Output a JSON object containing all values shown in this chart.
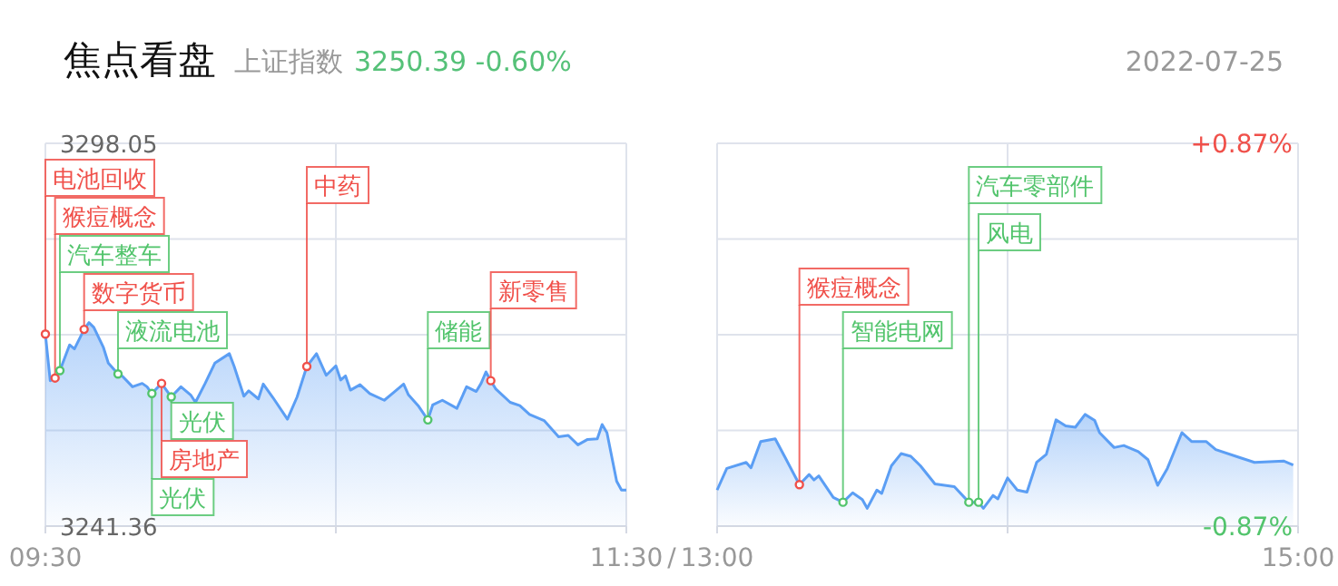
{
  "chart_data": [
    {
      "type": "line",
      "title": "焦点看盘",
      "subtitle": "上证指数",
      "annotations": [
        "3250.39 -0.60%",
        "2022-07-25",
        "/",
        {
          "text": "汽车整车",
          "x": "2022-07-25T09:33",
          "y": 3264.4
        },
        {
          "text": "猴痘概念",
          "x": "2022-07-25T09:32",
          "y": 3263.3
        },
        {
          "text": "电池回收",
          "x": "2022-07-25T09:30",
          "y": 3269.8
        },
        {
          "text": "光伏",
          "x": "2022-07-25T09:56",
          "y": 3260.5
        },
        {
          "text": "房地产",
          "x": "2022-07-25T09:54",
          "y": 3262.5
        },
        {
          "text": "数字货币",
          "x": "2022-07-25T09:38",
          "y": 3270.5
        },
        {
          "text": "液流电池",
          "x": "2022-07-25T09:45",
          "y": 3263.9
        },
        {
          "text": "光伏",
          "x": "2022-07-25T09:52",
          "y": 3261.0
        },
        {
          "text": "中药",
          "x": "2022-07-25T10:24",
          "y": 3265.0
        },
        {
          "text": "储能",
          "x": "2022-07-25T10:49",
          "y": 3257.1
        },
        {
          "text": "新零售",
          "x": "2022-07-25T11:02",
          "y": 3262.9
        }
      ],
      "xlim": [
        "2022-07-25T09:30",
        "2022-07-25T11:30"
      ],
      "xticks": [
        {
          "value": "2022-07-25T09:30",
          "label": "09:30"
        },
        {
          "value": "2022-07-25T10:30",
          "label": null
        },
        {
          "value": "2022-07-25T11:30",
          "label": "11:30"
        }
      ],
      "ylim": [
        3241.36,
        3298.05
      ],
      "yticks": [
        3241.36,
        {
          "value": 3255.53,
          "label": null
        },
        {
          "value": 3269.71,
          "label": null
        },
        {
          "value": 3283.88,
          "label": null
        },
        3298.05
      ],
      "grid": true,
      "series": [
        {
          "type": "area",
          "color": "#5b9ef4",
          "x": [
            "2022-07-25T09:30",
            "2022-07-25T09:31",
            "2022-07-25T09:32",
            "2022-07-25T09:33",
            "2022-07-25T09:35",
            "2022-07-25T09:36",
            "2022-07-25T09:38",
            "2022-07-25T09:39",
            "2022-07-25T09:40",
            "2022-07-25T09:42",
            "2022-07-25T09:43",
            "2022-07-25T09:45",
            "2022-07-25T09:46",
            "2022-07-25T09:48",
            "2022-07-25T09:50",
            "2022-07-25T09:51",
            "2022-07-25T09:52",
            "2022-07-25T09:54",
            "2022-07-25T09:56",
            "2022-07-25T09:58",
            "2022-07-25T10:00",
            "2022-07-25T10:01",
            "2022-07-25T10:03",
            "2022-07-25T10:05",
            "2022-07-25T10:08",
            "2022-07-25T10:09",
            "2022-07-25T10:11",
            "2022-07-25T10:12",
            "2022-07-25T10:14",
            "2022-07-25T10:15",
            "2022-07-25T10:17",
            "2022-07-25T10:20",
            "2022-07-25T10:22",
            "2022-07-25T10:24",
            "2022-07-25T10:26",
            "2022-07-25T10:28",
            "2022-07-25T10:30",
            "2022-07-25T10:31",
            "2022-07-25T10:32",
            "2022-07-25T10:33",
            "2022-07-25T10:35",
            "2022-07-25T10:37",
            "2022-07-25T10:40",
            "2022-07-25T10:42",
            "2022-07-25T10:44",
            "2022-07-25T10:45",
            "2022-07-25T10:47",
            "2022-07-25T10:49",
            "2022-07-25T10:50",
            "2022-07-25T10:52",
            "2022-07-25T10:55",
            "2022-07-25T10:57",
            "2022-07-25T10:59",
            "2022-07-25T11:00",
            "2022-07-25T11:01",
            "2022-07-25T11:02",
            "2022-07-25T11:03",
            "2022-07-25T11:06",
            "2022-07-25T11:08",
            "2022-07-25T11:10",
            "2022-07-25T11:13",
            "2022-07-25T11:16",
            "2022-07-25T11:18",
            "2022-07-25T11:20",
            "2022-07-25T11:22",
            "2022-07-25T11:24",
            "2022-07-25T11:25",
            "2022-07-25T11:26",
            "2022-07-25T11:28",
            "2022-07-25T11:29",
            "2022-07-25T11:30"
          ],
          "values": [
            3269.8,
            3262.9,
            3263.3,
            3264.4,
            3268.2,
            3267.6,
            3270.5,
            3271.5,
            3270.8,
            3267.8,
            3265.5,
            3263.9,
            3263.5,
            3262.0,
            3262.5,
            3262.0,
            3261.0,
            3262.5,
            3260.5,
            3262.0,
            3260.8,
            3259.7,
            3262.5,
            3265.5,
            3266.9,
            3265.0,
            3260.6,
            3261.4,
            3260.2,
            3262.4,
            3260.4,
            3257.2,
            3260.5,
            3265.0,
            3266.9,
            3263.7,
            3265.1,
            3263.0,
            3263.6,
            3261.5,
            3262.3,
            3261.0,
            3260.0,
            3261.2,
            3262.4,
            3260.8,
            3259.2,
            3257.1,
            3259.3,
            3260.0,
            3258.8,
            3262.0,
            3261.3,
            3262.5,
            3264.2,
            3262.9,
            3261.7,
            3259.7,
            3259.2,
            3257.9,
            3257.0,
            3254.6,
            3254.8,
            3253.4,
            3254.2,
            3254.3,
            3256.4,
            3255.2,
            3248.0,
            3246.7,
            3246.7
          ]
        },
        {
          "type": "scatter",
          "color": "#f0504a",
          "x": [
            "2022-07-25T09:30",
            "2022-07-25T09:32",
            "2022-07-25T09:38",
            "2022-07-25T09:54",
            "2022-07-25T10:24",
            "2022-07-25T11:02"
          ],
          "values": [
            3269.8,
            3263.3,
            3270.5,
            3262.5,
            3265.0,
            3262.9
          ]
        },
        {
          "type": "scatter",
          "color": "#52c46c",
          "x": [
            "2022-07-25T09:33",
            "2022-07-25T09:45",
            "2022-07-25T09:56",
            "2022-07-25T09:52",
            "2022-07-25T10:49"
          ],
          "values": [
            3264.4,
            3263.9,
            3260.5,
            3261.0,
            3257.1
          ]
        }
      ]
    },
    {
      "type": "line",
      "annotations": [
        {
          "text": "猴痘概念",
          "x": "2022-07-25T13:17",
          "y": 3247.5
        },
        {
          "text": "智能电网",
          "x": "2022-07-25T13:26",
          "y": 3244.9
        },
        {
          "text": "汽车零部件",
          "x": "2022-07-25T13:52",
          "y": 3244.9
        },
        {
          "text": "风电",
          "x": "2022-07-25T13:54",
          "y": 3244.9
        }
      ],
      "xlim": [
        "2022-07-25T13:00",
        "2022-07-25T15:00"
      ],
      "xticks": [
        {
          "value": "2022-07-25T13:00",
          "label": "13:00"
        },
        {
          "value": "2022-07-25T14:00",
          "label": null
        },
        {
          "value": "2022-07-25T15:00",
          "label": "15:00"
        }
      ],
      "ylim": [
        3241.36,
        3298.05
      ],
      "yticks": [
        3241.36,
        3255.53,
        3269.71,
        3283.88,
        3298.05
      ],
      "tick_labels": "x",
      "y2lim": [
        -0.87,
        0.87
      ],
      "y2ticks": [
        {
          "value": 0.87,
          "label": "+0.87%"
        },
        {
          "value": -0.87,
          "label": "-0.87%"
        }
      ],
      "grid": true,
      "series": [
        {
          "type": "area",
          "color": "#5b9ef4",
          "x": [
            "2022-07-25T13:00",
            "2022-07-25T13:02",
            "2022-07-25T13:06",
            "2022-07-25T13:07",
            "2022-07-25T13:09",
            "2022-07-25T13:12",
            "2022-07-25T13:14",
            "2022-07-25T13:17",
            "2022-07-25T13:19",
            "2022-07-25T13:20",
            "2022-07-25T13:21",
            "2022-07-25T13:24",
            "2022-07-25T13:26",
            "2022-07-25T13:28",
            "2022-07-25T13:30",
            "2022-07-25T13:31",
            "2022-07-25T13:33",
            "2022-07-25T13:34",
            "2022-07-25T13:36",
            "2022-07-25T13:38",
            "2022-07-25T13:40",
            "2022-07-25T13:42",
            "2022-07-25T13:45",
            "2022-07-25T13:49",
            "2022-07-25T13:52",
            "2022-07-25T13:54",
            "2022-07-25T13:55",
            "2022-07-25T13:57",
            "2022-07-25T13:58",
            "2022-07-25T14:00",
            "2022-07-25T14:02",
            "2022-07-25T14:04",
            "2022-07-25T14:06",
            "2022-07-25T14:08",
            "2022-07-25T14:10",
            "2022-07-25T14:12",
            "2022-07-25T14:14",
            "2022-07-25T14:16",
            "2022-07-25T14:18",
            "2022-07-25T14:19",
            "2022-07-25T14:22",
            "2022-07-25T14:24",
            "2022-07-25T14:27",
            "2022-07-25T14:29",
            "2022-07-25T14:31",
            "2022-07-25T14:33",
            "2022-07-25T14:36",
            "2022-07-25T14:38",
            "2022-07-25T14:41",
            "2022-07-25T14:43",
            "2022-07-25T14:48",
            "2022-07-25T14:51",
            "2022-07-25T14:57",
            "2022-07-25T14:59"
          ],
          "values": [
            3246.7,
            3249.9,
            3250.8,
            3250.0,
            3253.9,
            3254.3,
            3251.6,
            3247.5,
            3249.0,
            3248.2,
            3248.8,
            3245.6,
            3244.9,
            3246.3,
            3245.3,
            3244.0,
            3246.7,
            3246.2,
            3250.3,
            3252.1,
            3251.7,
            3250.3,
            3247.6,
            3247.2,
            3244.9,
            3244.9,
            3244.0,
            3245.9,
            3245.4,
            3248.5,
            3246.7,
            3246.4,
            3250.8,
            3252.0,
            3257.1,
            3256.2,
            3256.0,
            3257.9,
            3257.0,
            3255.2,
            3253.0,
            3253.3,
            3252.4,
            3251.2,
            3247.4,
            3249.9,
            3255.2,
            3253.9,
            3253.9,
            3252.7,
            3251.5,
            3250.8,
            3251.0,
            3250.4
          ]
        },
        {
          "type": "scatter",
          "color": "#f0504a",
          "x": [
            "2022-07-25T13:17"
          ],
          "values": [
            3247.5
          ]
        },
        {
          "type": "scatter",
          "color": "#52c46c",
          "x": [
            "2022-07-25T13:26",
            "2022-07-25T13:52",
            "2022-07-25T13:54"
          ],
          "values": [
            3244.9,
            3244.9,
            3244.9
          ]
        }
      ]
    }
  ]
}
